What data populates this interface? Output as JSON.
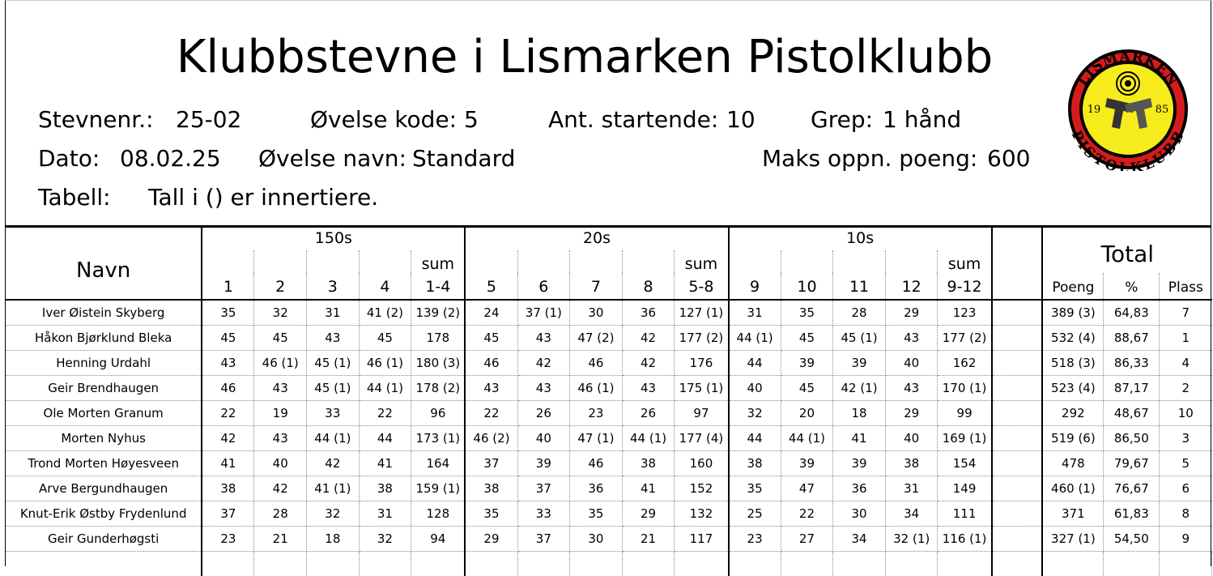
{
  "title": "Klubbstevne i Lismarken Pistolklubb",
  "info": {
    "stevnenr_label": "Stevnenr.:",
    "stevnenr": "25-02",
    "ovelse_kode_label": "Øvelse kode:",
    "ovelse_kode": "5",
    "ant_label": "Ant. startende:",
    "ant": "10",
    "grep_label": "Grep:",
    "grep": "1 hånd",
    "dato_label": "Dato:",
    "dato": "08.02.25",
    "ovelse_navn_label": "Øvelse navn:",
    "ovelse_navn": "Standard",
    "maks_label": "Maks oppn. poeng:",
    "maks": "600",
    "tabell_label": "Tabell:",
    "tabell": "Tall i () er innertiere."
  },
  "logo": {
    "top_text": "LISMARKEN",
    "bottom_text": "PISTOLKLUBB",
    "year_left": "19",
    "year_right": "85",
    "colors": {
      "ring": "#d41c1c",
      "fill": "#f7ec1b"
    }
  },
  "header": {
    "name": "Navn",
    "groups": [
      "150s",
      "20s",
      "10s"
    ],
    "total": "Total",
    "sum_label": "sum",
    "columns": [
      "1",
      "2",
      "3",
      "4",
      "1-4",
      "5",
      "6",
      "7",
      "8",
      "5-8",
      "9",
      "10",
      "11",
      "12",
      "9-12"
    ],
    "total_columns": [
      "Poeng",
      "%",
      "Plass"
    ]
  },
  "rows": [
    {
      "name": "Iver Øistein Skyberg",
      "s": [
        "35",
        "32",
        "31",
        "41 (2)",
        "139 (2)",
        "24",
        "37 (1)",
        "30",
        "36",
        "127 (1)",
        "31",
        "35",
        "28",
        "29",
        "123"
      ],
      "poeng": "389 (3)",
      "pct": "64,83",
      "plass": "7"
    },
    {
      "name": "Håkon Bjørklund Bleka",
      "s": [
        "45",
        "45",
        "43",
        "45",
        "178",
        "45",
        "43",
        "47 (2)",
        "42",
        "177 (2)",
        "44 (1)",
        "45",
        "45 (1)",
        "43",
        "177 (2)"
      ],
      "poeng": "532 (4)",
      "pct": "88,67",
      "plass": "1"
    },
    {
      "name": "Henning Urdahl",
      "s": [
        "43",
        "46 (1)",
        "45 (1)",
        "46 (1)",
        "180 (3)",
        "46",
        "42",
        "46",
        "42",
        "176",
        "44",
        "39",
        "39",
        "40",
        "162"
      ],
      "poeng": "518 (3)",
      "pct": "86,33",
      "plass": "4"
    },
    {
      "name": "Geir Brendhaugen",
      "s": [
        "46",
        "43",
        "45 (1)",
        "44 (1)",
        "178 (2)",
        "43",
        "43",
        "46 (1)",
        "43",
        "175 (1)",
        "40",
        "45",
        "42 (1)",
        "43",
        "170 (1)"
      ],
      "poeng": "523 (4)",
      "pct": "87,17",
      "plass": "2"
    },
    {
      "name": "Ole Morten Granum",
      "s": [
        "22",
        "19",
        "33",
        "22",
        "96",
        "22",
        "26",
        "23",
        "26",
        "97",
        "32",
        "20",
        "18",
        "29",
        "99"
      ],
      "poeng": "292",
      "pct": "48,67",
      "plass": "10"
    },
    {
      "name": "Morten Nyhus",
      "s": [
        "42",
        "43",
        "44 (1)",
        "44",
        "173 (1)",
        "46 (2)",
        "40",
        "47 (1)",
        "44 (1)",
        "177 (4)",
        "44",
        "44 (1)",
        "41",
        "40",
        "169 (1)"
      ],
      "poeng": "519 (6)",
      "pct": "86,50",
      "plass": "3"
    },
    {
      "name": "Trond Morten Høyesveen",
      "s": [
        "41",
        "40",
        "42",
        "41",
        "164",
        "37",
        "39",
        "46",
        "38",
        "160",
        "38",
        "39",
        "39",
        "38",
        "154"
      ],
      "poeng": "478",
      "pct": "79,67",
      "plass": "5"
    },
    {
      "name": "Arve Bergundhaugen",
      "s": [
        "38",
        "42",
        "41 (1)",
        "38",
        "159 (1)",
        "38",
        "37",
        "36",
        "41",
        "152",
        "35",
        "47",
        "36",
        "31",
        "149"
      ],
      "poeng": "460 (1)",
      "pct": "76,67",
      "plass": "6"
    },
    {
      "name": "Knut-Erik Østby Frydenlund",
      "s": [
        "37",
        "28",
        "32",
        "31",
        "128",
        "35",
        "33",
        "35",
        "29",
        "132",
        "25",
        "22",
        "30",
        "34",
        "111"
      ],
      "poeng": "371",
      "pct": "61,83",
      "plass": "8"
    },
    {
      "name": "Geir Gunderhøgsti",
      "s": [
        "23",
        "21",
        "18",
        "32",
        "94",
        "29",
        "37",
        "30",
        "21",
        "117",
        "23",
        "27",
        "34",
        "32 (1)",
        "116 (1)"
      ],
      "poeng": "327 (1)",
      "pct": "54,50",
      "plass": "9"
    }
  ]
}
